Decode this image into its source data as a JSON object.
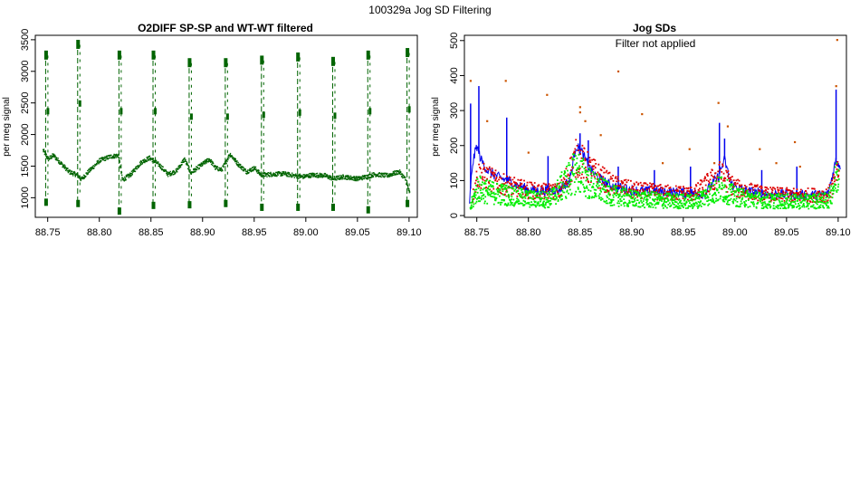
{
  "suptitle": "100329a   Jog SD Filtering",
  "colors": {
    "dark_green": "#006400",
    "blue": "#0000ee",
    "red": "#dd0000",
    "bright_green": "#00ee00",
    "orange": "#cc5500",
    "axis": "#000000"
  },
  "chart_data": [
    {
      "type": "scatter",
      "title": "O2DIFF SP-SP and WT-WT filtered",
      "xlabel": "",
      "ylabel": "per meg signal",
      "xlim": [
        88.738,
        89.108
      ],
      "ylim": [
        690,
        3570
      ],
      "x_ticks": [
        88.75,
        88.8,
        88.85,
        88.9,
        88.95,
        89.0,
        89.05,
        89.1
      ],
      "x_tick_labels": [
        "88.75",
        "88.80",
        "88.85",
        "88.90",
        "88.95",
        "89.00",
        "89.05",
        "89.10"
      ],
      "y_ticks": [
        1000,
        1500,
        2000,
        2500,
        3000,
        3500
      ],
      "y_tick_labels": [
        "1000",
        "1500",
        "2000",
        "2500",
        "3000",
        "3500"
      ],
      "series": [
        {
          "color": "dark_green",
          "baseline": [
            [
              88.745,
              1760
            ],
            [
              88.75,
              1620
            ],
            [
              88.755,
              1680
            ],
            [
              88.762,
              1560
            ],
            [
              88.77,
              1420
            ],
            [
              88.778,
              1370
            ],
            [
              88.782,
              1300
            ],
            [
              88.79,
              1440
            ],
            [
              88.8,
              1600
            ],
            [
              88.81,
              1660
            ],
            [
              88.818,
              1680
            ],
            [
              88.822,
              1290
            ],
            [
              88.83,
              1380
            ],
            [
              88.84,
              1570
            ],
            [
              88.848,
              1640
            ],
            [
              88.852,
              1600
            ],
            [
              88.858,
              1520
            ],
            [
              88.866,
              1380
            ],
            [
              88.874,
              1430
            ],
            [
              88.882,
              1620
            ],
            [
              88.888,
              1400
            ],
            [
              88.896,
              1500
            ],
            [
              88.906,
              1620
            ],
            [
              88.912,
              1480
            ],
            [
              88.918,
              1450
            ],
            [
              88.926,
              1700
            ],
            [
              88.934,
              1540
            ],
            [
              88.942,
              1420
            ],
            [
              88.95,
              1480
            ],
            [
              88.956,
              1370
            ],
            [
              88.966,
              1380
            ],
            [
              88.978,
              1390
            ],
            [
              88.988,
              1360
            ],
            [
              88.996,
              1340
            ],
            [
              89.006,
              1370
            ],
            [
              89.018,
              1360
            ],
            [
              89.026,
              1310
            ],
            [
              89.036,
              1340
            ],
            [
              89.05,
              1310
            ],
            [
              89.06,
              1350
            ],
            [
              89.066,
              1380
            ],
            [
              89.078,
              1360
            ],
            [
              89.09,
              1420
            ],
            [
              89.096,
              1300
            ],
            [
              89.1,
              1080
            ]
          ],
          "spikes": [
            [
              88.748,
              3300,
              900
            ],
            [
              88.779,
              3470,
              880
            ],
            [
              88.819,
              3300,
              760
            ],
            [
              88.852,
              3300,
              850
            ],
            [
              88.887,
              3180,
              860
            ],
            [
              88.922,
              3180,
              880
            ],
            [
              88.957,
              3220,
              820
            ],
            [
              88.992,
              3270,
              820
            ],
            [
              89.026,
              3200,
              820
            ],
            [
              89.06,
              3300,
              780
            ],
            [
              89.098,
              3340,
              880
            ]
          ]
        }
      ]
    },
    {
      "type": "scatter",
      "title": "Jog SDs",
      "annotation": "Filter not applied",
      "xlabel": "",
      "ylabel": "per meg signal",
      "xlim": [
        88.738,
        89.108
      ],
      "ylim": [
        -5,
        515
      ],
      "x_ticks": [
        88.75,
        88.8,
        88.85,
        88.9,
        88.95,
        89.0,
        89.05,
        89.1
      ],
      "x_tick_labels": [
        "88.75",
        "88.80",
        "88.85",
        "88.90",
        "88.95",
        "89.00",
        "89.05",
        "89.10"
      ],
      "y_ticks": [
        0,
        100,
        200,
        300,
        400,
        500
      ],
      "y_tick_labels": [
        "0",
        "100",
        "200",
        "300",
        "400",
        "500"
      ],
      "series": [
        {
          "color": "blue",
          "baseline": [
            [
              88.743,
              40
            ],
            [
              88.746,
              150
            ],
            [
              88.75,
              200
            ],
            [
              88.754,
              160
            ],
            [
              88.76,
              130
            ],
            [
              88.77,
              110
            ],
            [
              88.78,
              100
            ],
            [
              88.79,
              85
            ],
            [
              88.8,
              75
            ],
            [
              88.81,
              70
            ],
            [
              88.82,
              72
            ],
            [
              88.83,
              75
            ],
            [
              88.84,
              100
            ],
            [
              88.846,
              200
            ],
            [
              88.852,
              180
            ],
            [
              88.858,
              140
            ],
            [
              88.866,
              110
            ],
            [
              88.88,
              85
            ],
            [
              88.895,
              75
            ],
            [
              88.91,
              70
            ],
            [
              88.93,
              68
            ],
            [
              88.95,
              65
            ],
            [
              88.97,
              62
            ],
            [
              88.984,
              110
            ],
            [
              88.99,
              160
            ],
            [
              88.996,
              90
            ],
            [
              89.01,
              70
            ],
            [
              89.03,
              62
            ],
            [
              89.05,
              60
            ],
            [
              89.07,
              58
            ],
            [
              89.09,
              60
            ],
            [
              89.098,
              160
            ],
            [
              89.102,
              140
            ]
          ],
          "spikes": [
            [
              88.744,
              320
            ],
            [
              88.752,
              370
            ],
            [
              88.779,
              280
            ],
            [
              88.819,
              170
            ],
            [
              88.85,
              235
            ],
            [
              88.858,
              215
            ],
            [
              88.887,
              140
            ],
            [
              88.922,
              130
            ],
            [
              88.957,
              140
            ],
            [
              88.985,
              265
            ],
            [
              88.99,
              220
            ],
            [
              89.026,
              130
            ],
            [
              89.06,
              140
            ],
            [
              89.098,
              360
            ]
          ]
        },
        {
          "color": "red",
          "baseline": [
            [
              88.745,
              50
            ],
            [
              88.75,
              120
            ],
            [
              88.76,
              110
            ],
            [
              88.77,
              95
            ],
            [
              88.79,
              80
            ],
            [
              88.81,
              70
            ],
            [
              88.83,
              72
            ],
            [
              88.846,
              170
            ],
            [
              88.86,
              130
            ],
            [
              88.88,
              90
            ],
            [
              88.9,
              75
            ],
            [
              88.93,
              68
            ],
            [
              88.96,
              65
            ],
            [
              88.985,
              120
            ],
            [
              89.0,
              80
            ],
            [
              89.03,
              63
            ],
            [
              89.06,
              60
            ],
            [
              89.09,
              62
            ],
            [
              89.1,
              130
            ]
          ]
        },
        {
          "color": "bright_green",
          "baseline": [
            [
              88.743,
              25
            ],
            [
              88.75,
              80
            ],
            [
              88.76,
              70
            ],
            [
              88.78,
              60
            ],
            [
              88.8,
              50
            ],
            [
              88.82,
              48
            ],
            [
              88.846,
              130
            ],
            [
              88.86,
              90
            ],
            [
              88.88,
              60
            ],
            [
              88.9,
              50
            ],
            [
              88.93,
              45
            ],
            [
              88.96,
              42
            ],
            [
              88.986,
              80
            ],
            [
              89.0,
              55
            ],
            [
              89.03,
              44
            ],
            [
              89.06,
              42
            ],
            [
              89.09,
              45
            ],
            [
              89.1,
              130
            ]
          ]
        }
      ],
      "outliers": [
        [
          88.744,
          385
        ],
        [
          88.778,
          385
        ],
        [
          88.818,
          345
        ],
        [
          88.887,
          412
        ],
        [
          88.91,
          290
        ],
        [
          88.984,
          322
        ],
        [
          89.099,
          502
        ],
        [
          88.85,
          310
        ],
        [
          88.855,
          270
        ],
        [
          88.993,
          255
        ],
        [
          89.024,
          190
        ],
        [
          89.058,
          210
        ],
        [
          89.098,
          370
        ],
        [
          88.76,
          270
        ],
        [
          88.85,
          295
        ],
        [
          88.956,
          190
        ],
        [
          88.93,
          150
        ],
        [
          89.04,
          150
        ],
        [
          88.8,
          180
        ],
        [
          88.87,
          230
        ],
        [
          89.063,
          140
        ],
        [
          88.98,
          150
        ]
      ]
    }
  ]
}
